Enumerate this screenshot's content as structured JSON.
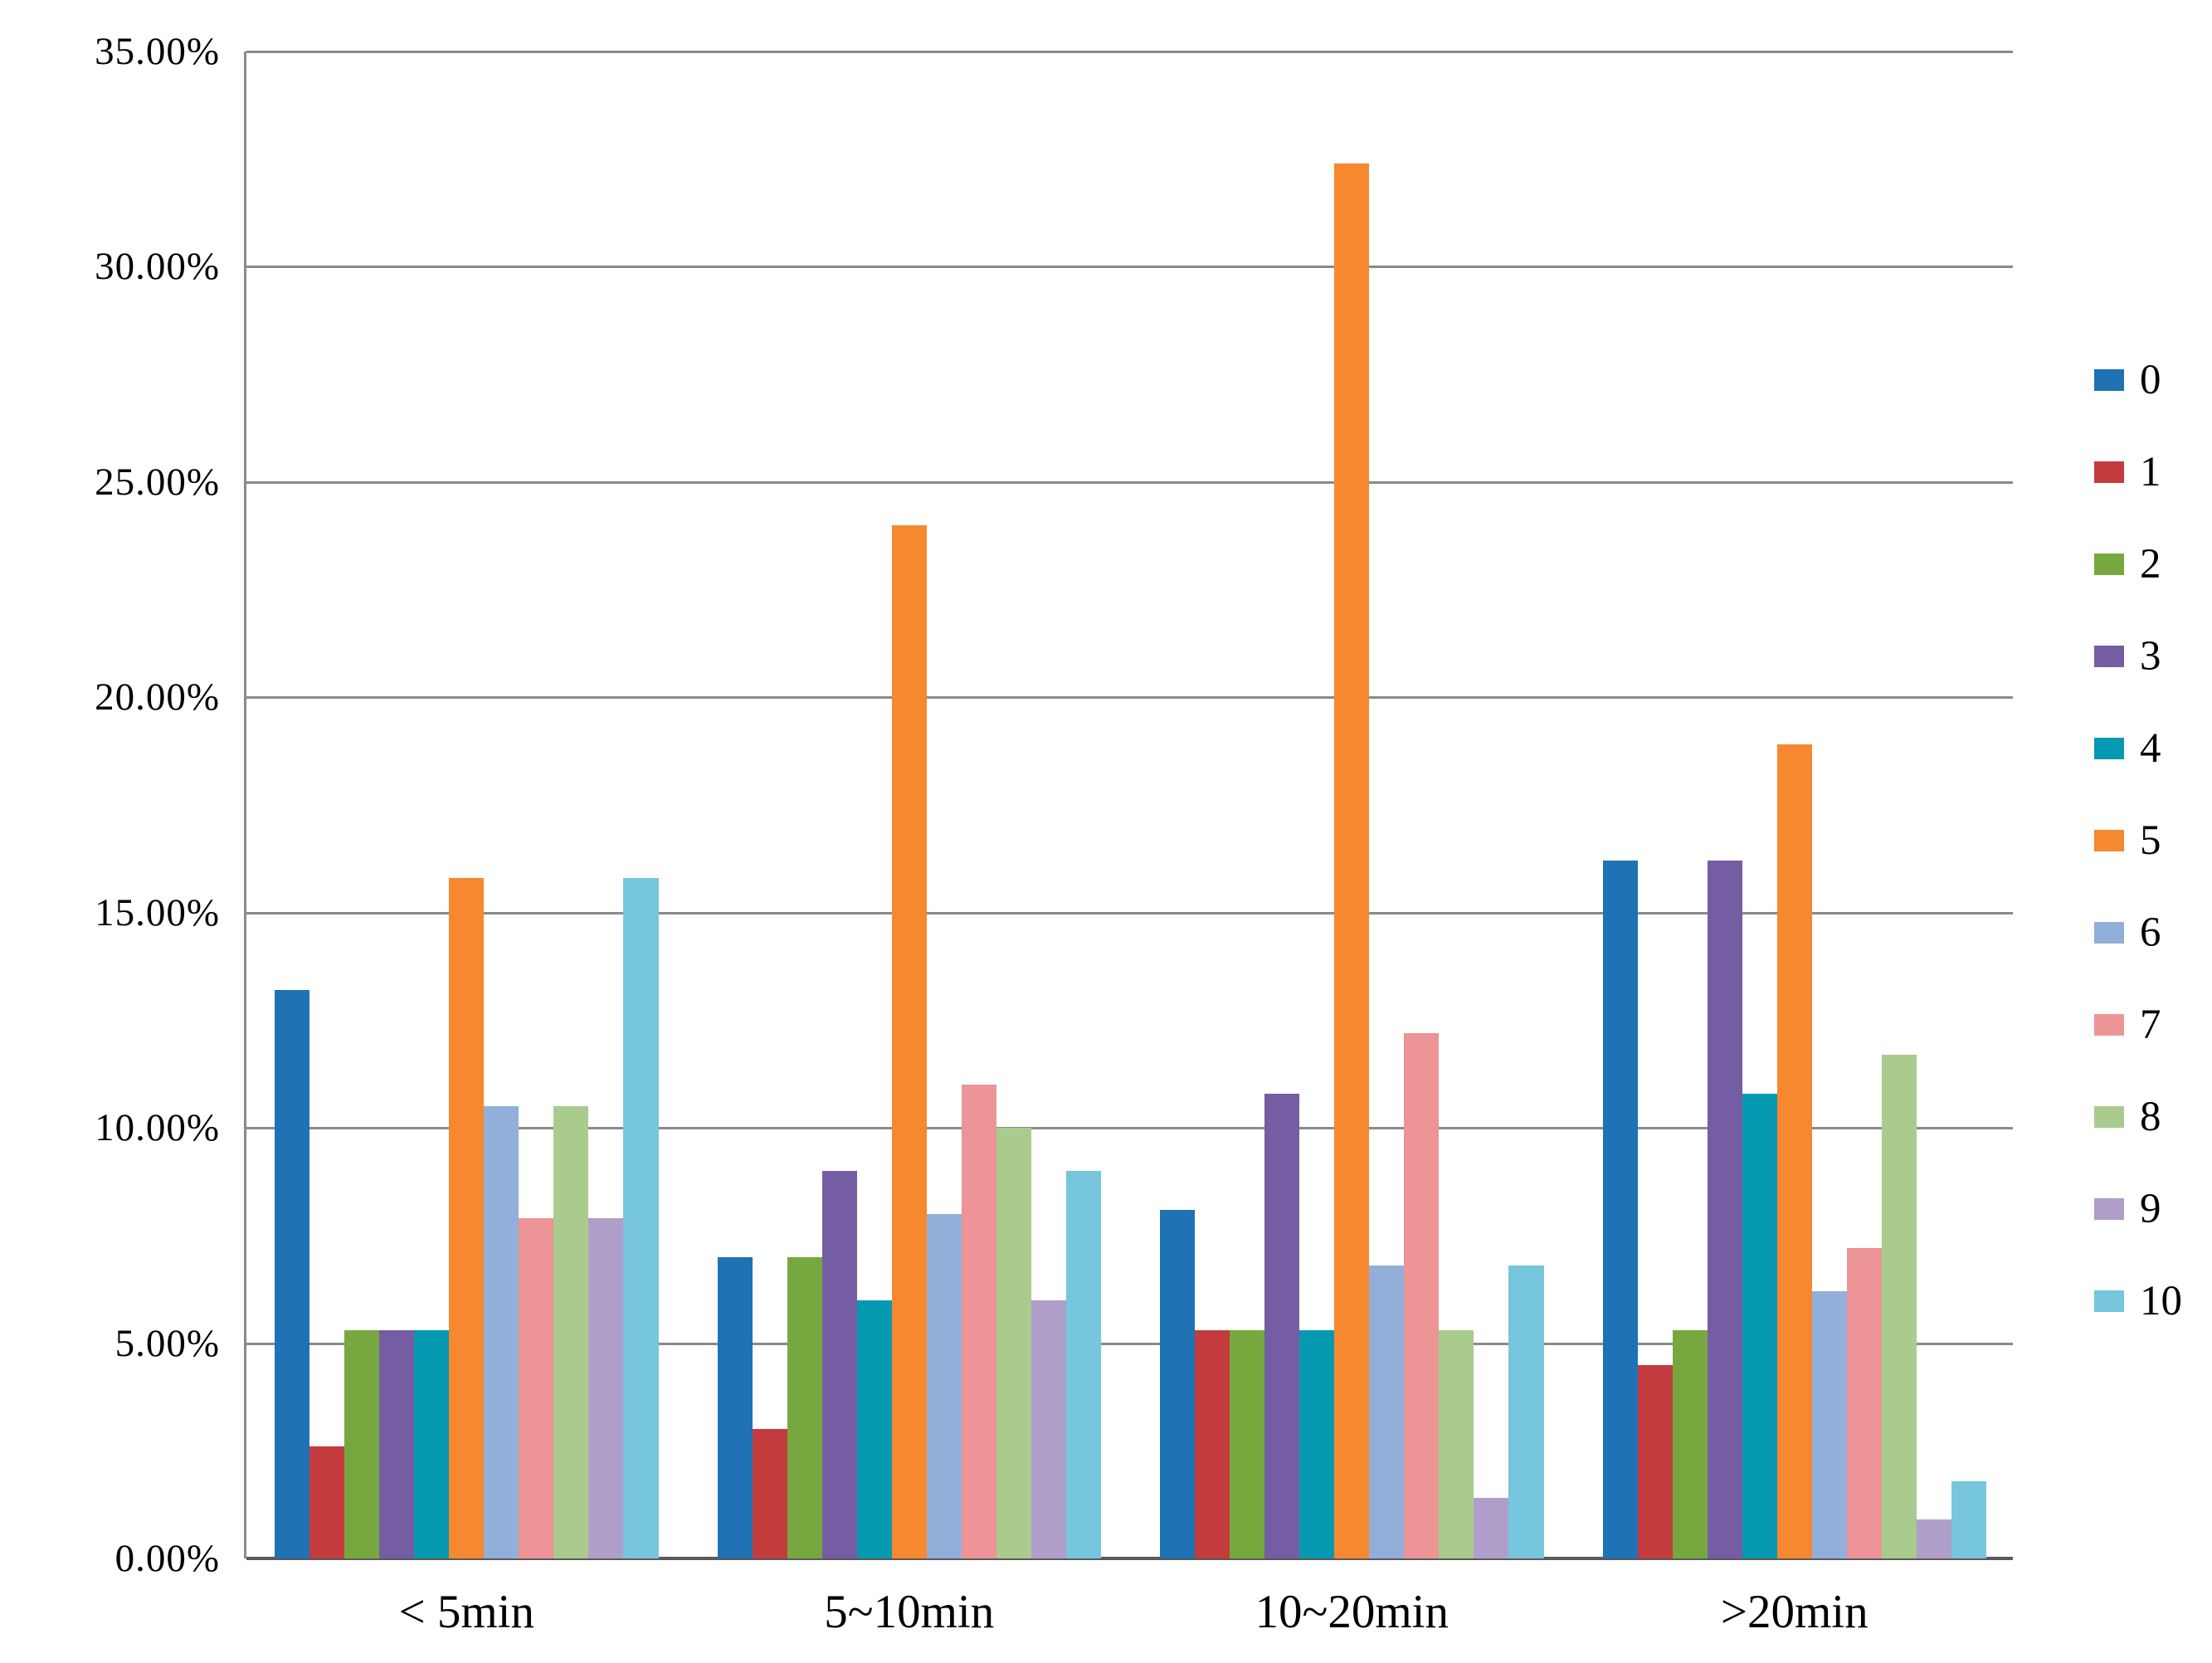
{
  "chart_data": {
    "type": "bar",
    "title": "",
    "categories": [
      "< 5min",
      "5~10min",
      "10~20min",
      ">20min"
    ],
    "series": [
      {
        "name": "0",
        "color": "#1F72B4",
        "values": [
          13.2,
          7.0,
          8.1,
          16.2
        ]
      },
      {
        "name": "1",
        "color": "#C33B3D",
        "values": [
          2.6,
          3.0,
          5.3,
          4.5
        ]
      },
      {
        "name": "2",
        "color": "#77A83F",
        "values": [
          5.3,
          7.0,
          5.3,
          5.3
        ]
      },
      {
        "name": "3",
        "color": "#755DA3",
        "values": [
          5.3,
          9.0,
          10.8,
          16.2
        ]
      },
      {
        "name": "4",
        "color": "#0599B2",
        "values": [
          5.3,
          6.0,
          5.3,
          10.8
        ]
      },
      {
        "name": "5",
        "color": "#F6882F",
        "values": [
          15.8,
          24.0,
          32.4,
          18.9
        ]
      },
      {
        "name": "6",
        "color": "#92AFD9",
        "values": [
          10.5,
          8.0,
          6.8,
          6.2
        ]
      },
      {
        "name": "7",
        "color": "#EC9496",
        "values": [
          7.9,
          11.0,
          12.2,
          7.2
        ]
      },
      {
        "name": "8",
        "color": "#A9CC8E",
        "values": [
          10.5,
          10.0,
          5.3,
          11.7
        ]
      },
      {
        "name": "9",
        "color": "#AF9EC9",
        "values": [
          7.9,
          6.0,
          1.4,
          0.9
        ]
      },
      {
        "name": "10",
        "color": "#76C6DD",
        "values": [
          15.8,
          9.0,
          6.8,
          1.8
        ]
      }
    ],
    "y_axis": {
      "min": 0,
      "max": 35,
      "step": 5,
      "tick_labels": [
        "35.00%",
        "30.00%",
        "25.00%",
        "20.00%",
        "15.00%",
        "10.00%",
        "5.00%",
        "0.00%"
      ]
    },
    "xlabel": "",
    "ylabel": "",
    "grid": true,
    "legend": {
      "position": "right",
      "entries": [
        "0",
        "1",
        "2",
        "3",
        "4",
        "5",
        "6",
        "7",
        "8",
        "9",
        "10"
      ]
    }
  },
  "colors": {
    "gridline": "#8a8a8a",
    "axis_line": "#595959",
    "background": "#ffffff",
    "text": "#000000"
  }
}
